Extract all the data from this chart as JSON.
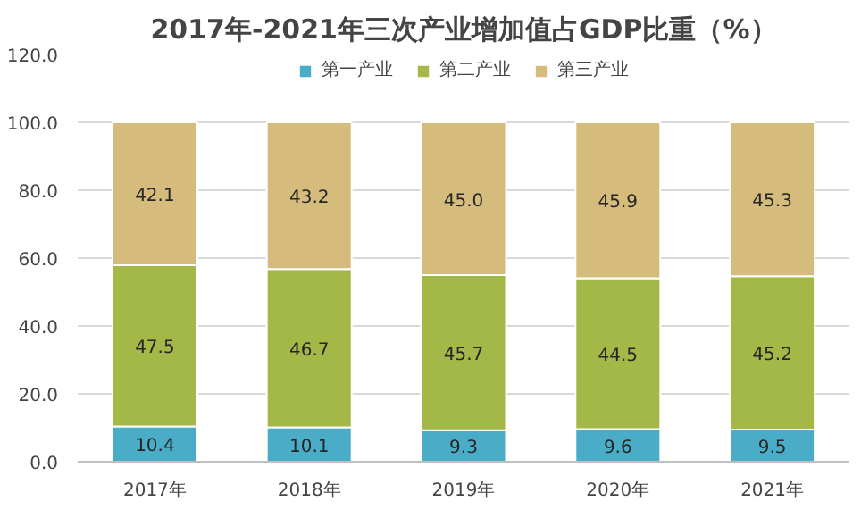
{
  "chart_data": {
    "type": "bar",
    "title": "2017年-2021年三次产业增加值占GDP比重（%）",
    "stacked": true,
    "categories": [
      "2017年",
      "2018年",
      "2019年",
      "2020年",
      "2021年"
    ],
    "series": [
      {
        "name": "第一产业",
        "color": "#4aacc6",
        "values": [
          10.4,
          10.1,
          9.3,
          9.6,
          9.5
        ],
        "value_labels": [
          "10.4",
          "10.1",
          "9.3",
          "9.6",
          "9.5"
        ]
      },
      {
        "name": "第二产业",
        "color": "#a4b848",
        "values": [
          47.5,
          46.7,
          45.7,
          44.5,
          45.2
        ],
        "value_labels": [
          "47.5",
          "46.7",
          "45.7",
          "44.5",
          "45.2"
        ]
      },
      {
        "name": "第三产业",
        "color": "#d6bc7c",
        "values": [
          42.1,
          43.2,
          45.0,
          45.9,
          45.3
        ],
        "value_labels": [
          "42.1",
          "43.2",
          "45.0",
          "45.9",
          "45.3"
        ]
      }
    ],
    "ylim": [
      0,
      120
    ],
    "yticks": [
      {
        "value": 0,
        "label": "0.0"
      },
      {
        "value": 20,
        "label": "20.0"
      },
      {
        "value": 40,
        "label": "40.0"
      },
      {
        "value": 60,
        "label": "60.0"
      },
      {
        "value": 80,
        "label": "80.0"
      },
      {
        "value": 100,
        "label": "100.0"
      },
      {
        "value": 120,
        "label": "120.0"
      }
    ],
    "grid": "y",
    "legend": "top"
  }
}
